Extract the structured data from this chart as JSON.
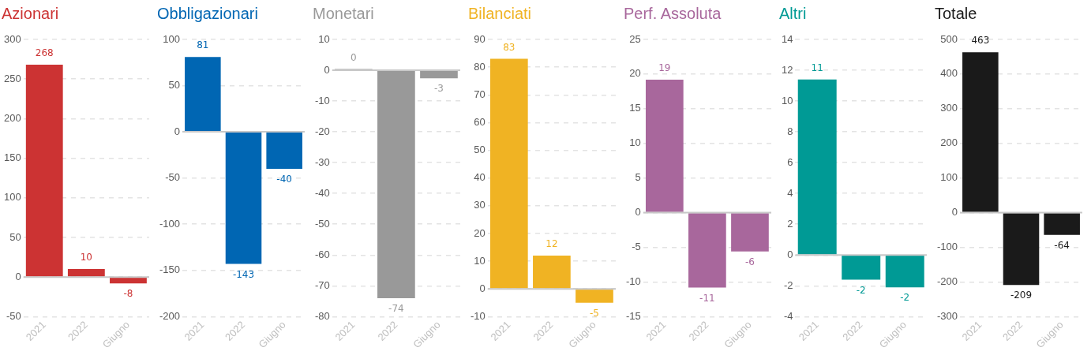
{
  "chart_data": [
    {
      "type": "bar",
      "title": "Azionari",
      "categories": [
        "2021",
        "2022",
        "Giugno"
      ],
      "values": [
        268,
        10,
        -8
      ],
      "value_labels": [
        "268",
        "10",
        "-8"
      ],
      "color": "#cc3333",
      "ref_lines": [
        {
          "axis": "y",
          "value": 0,
          "color": "#c8c8c8"
        }
      ],
      "ylim": [
        -50,
        300
      ],
      "yticks": [
        -50,
        0,
        50,
        100,
        150,
        200,
        250,
        300
      ],
      "grid": "y",
      "legend": false
    },
    {
      "type": "bar",
      "title": "Obbligazionari",
      "categories": [
        "2021",
        "2022",
        "Giugno"
      ],
      "values": [
        81,
        -143,
        -40
      ],
      "value_labels": [
        "81",
        "-143",
        "-40"
      ],
      "color": "#0066b3",
      "ref_lines": [
        {
          "axis": "y",
          "value": 0,
          "color": "#c8c8c8"
        }
      ],
      "ylim": [
        -200,
        100
      ],
      "yticks": [
        -200,
        -150,
        -100,
        -50,
        0,
        50,
        100
      ],
      "grid": "y",
      "legend": false
    },
    {
      "type": "bar",
      "title": "Monetari",
      "categories": [
        "2021",
        "2022",
        "Giugno"
      ],
      "values": [
        0.4,
        -74,
        -2.6
      ],
      "value_labels": [
        "0",
        "-74",
        "-3"
      ],
      "color": "#999999",
      "ref_lines": [
        {
          "axis": "y",
          "value": 0,
          "color": "#c8c8c8"
        }
      ],
      "ylim": [
        -80,
        10
      ],
      "yticks": [
        -80,
        -70,
        -60,
        -50,
        -40,
        -30,
        -20,
        -10,
        0,
        10
      ],
      "grid": "y",
      "legend": false
    },
    {
      "type": "bar",
      "title": "Bilanciati",
      "categories": [
        "2021",
        "2022",
        "Giugno"
      ],
      "values": [
        83,
        12,
        -5
      ],
      "value_labels": [
        "83",
        "12",
        "-5"
      ],
      "color": "#f0b323",
      "ref_lines": [
        {
          "axis": "y",
          "value": 0,
          "color": "#c8c8c8"
        }
      ],
      "ylim": [
        -10,
        90
      ],
      "yticks": [
        -10,
        0,
        10,
        20,
        30,
        40,
        50,
        60,
        70,
        80,
        90
      ],
      "grid": "y",
      "legend": false
    },
    {
      "type": "bar",
      "title": "Perf. Assoluta",
      "categories": [
        "2021",
        "2022",
        "Giugno"
      ],
      "values": [
        19.2,
        -10.8,
        -5.6
      ],
      "value_labels": [
        "19",
        "-11",
        "-6"
      ],
      "color": "#a8679c",
      "ref_lines": [
        {
          "axis": "y",
          "value": 0,
          "color": "#c8c8c8"
        }
      ],
      "ylim": [
        -15,
        25
      ],
      "yticks": [
        -15,
        -10,
        -5,
        0,
        5,
        10,
        15,
        20,
        25
      ],
      "grid": "y",
      "legend": false
    },
    {
      "type": "bar",
      "title": "Altri",
      "categories": [
        "2021",
        "2022",
        "Giugno"
      ],
      "values": [
        11.4,
        -1.6,
        -2.1
      ],
      "value_labels": [
        "11",
        "-2",
        "-2"
      ],
      "color": "#009a95",
      "ref_lines": [
        {
          "axis": "y",
          "value": 0,
          "color": "#c8c8c8"
        }
      ],
      "ylim": [
        -4,
        14
      ],
      "yticks": [
        -4,
        -2,
        0,
        2,
        4,
        6,
        8,
        10,
        12,
        14
      ],
      "grid": "y",
      "legend": false
    },
    {
      "type": "bar",
      "title": "Totale",
      "categories": [
        "2021",
        "2022",
        "Giugno"
      ],
      "values": [
        463,
        -209,
        -64
      ],
      "value_labels": [
        "463",
        "-209",
        "-64"
      ],
      "color": "#1a1a1a",
      "ref_lines": [
        {
          "axis": "y",
          "value": 0,
          "color": "#c8c8c8"
        }
      ],
      "ylim": [
        -300,
        500
      ],
      "yticks": [
        -300,
        -200,
        -100,
        0,
        100,
        200,
        300,
        400,
        500
      ],
      "grid": "y",
      "legend": false
    }
  ]
}
